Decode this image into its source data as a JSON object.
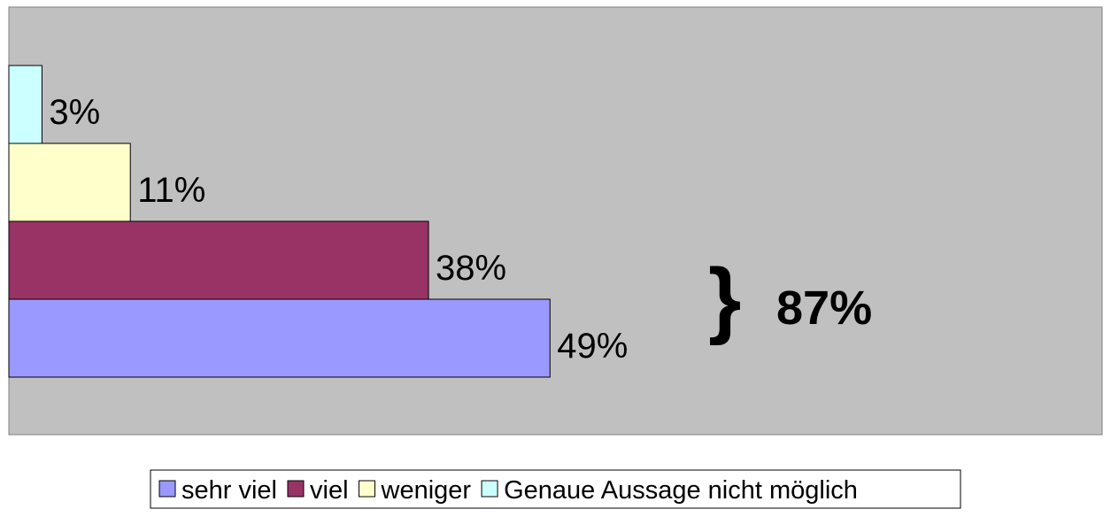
{
  "chart_data": {
    "type": "hbar",
    "categories": [
      null
    ],
    "series": [
      {
        "name": "sehr viel",
        "color": "#9999ff",
        "values": [
          49
        ],
        "value_labels": [
          "49%"
        ]
      },
      {
        "name": "viel",
        "color": "#993366",
        "values": [
          38
        ],
        "value_labels": [
          "38%"
        ]
      },
      {
        "name": "weniger",
        "color": "#ffffcc",
        "values": [
          11
        ],
        "value_labels": [
          "11%"
        ]
      },
      {
        "name": "Genaue Aussage nicht möglich",
        "color": "#ccffff",
        "values": [
          3
        ],
        "value_labels": [
          "3%"
        ]
      }
    ],
    "xlim": [
      0,
      99
    ],
    "annotations": [
      "87%"
    ],
    "legend": "bottom"
  }
}
